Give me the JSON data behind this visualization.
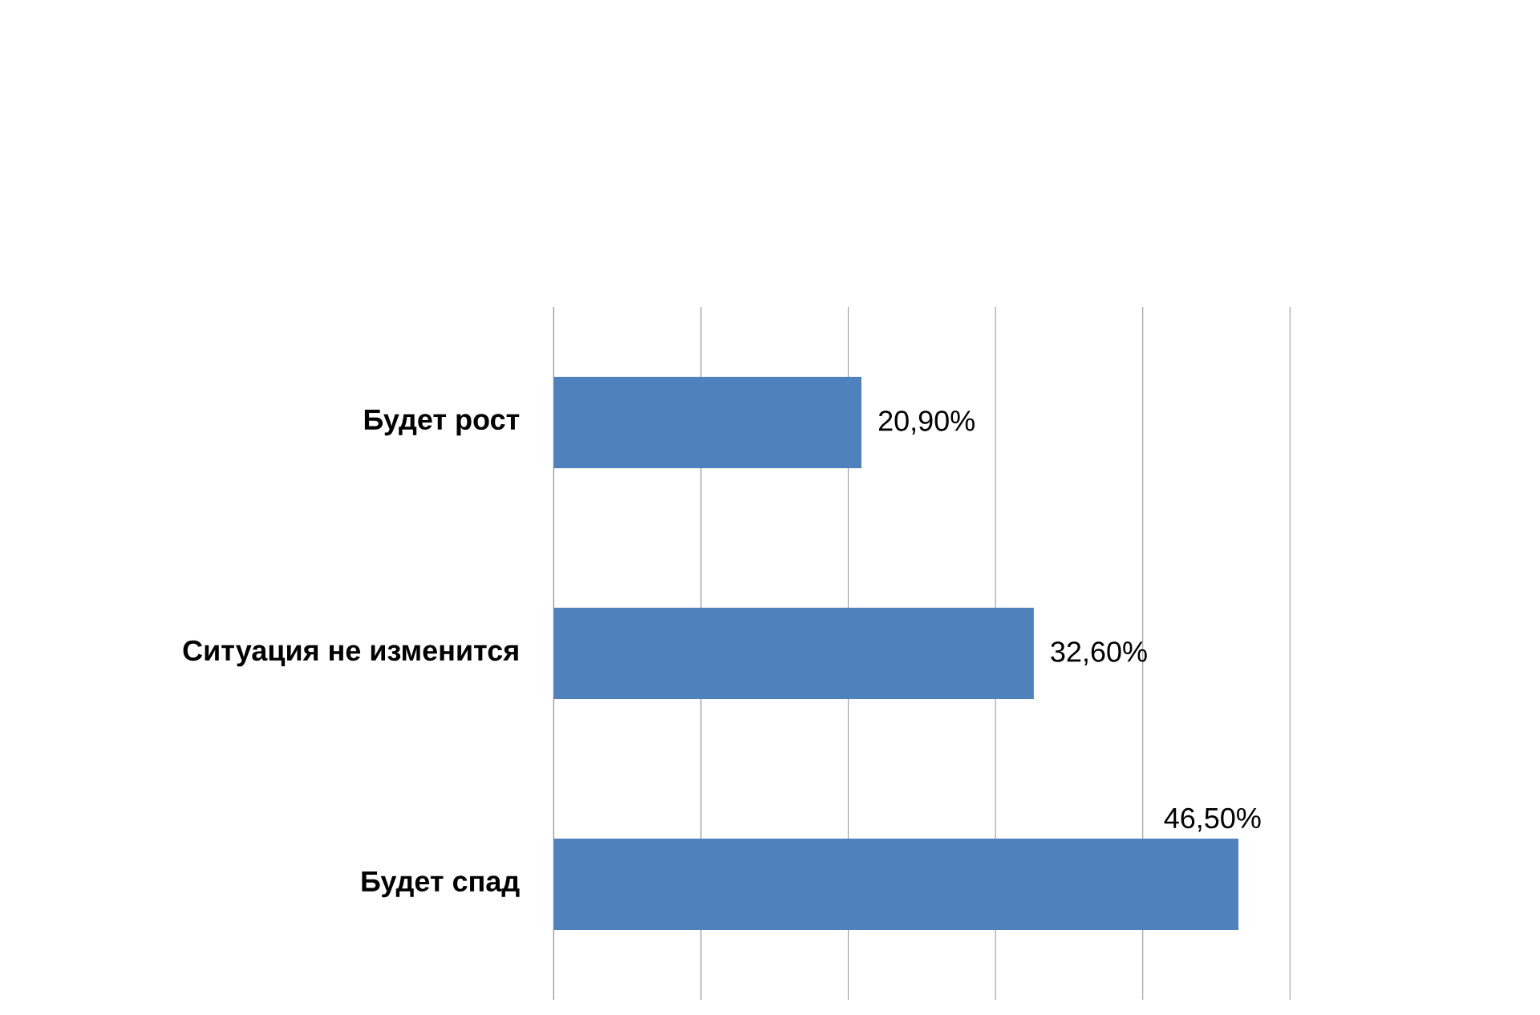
{
  "chart_data": {
    "type": "bar",
    "orientation": "horizontal",
    "categories": [
      "Будет рост",
      "Ситуация не изменится",
      "Будет спад"
    ],
    "values": [
      20.9,
      32.6,
      46.5
    ],
    "value_labels": [
      "20,90%",
      "32,60%",
      "46,50%"
    ],
    "color": "#4f81bd",
    "xlim": [
      0,
      50
    ],
    "xticks": [
      {
        "value": 0,
        "label": null
      },
      {
        "value": 10,
        "label": null
      },
      {
        "value": 20,
        "label": null
      },
      {
        "value": 30,
        "label": null
      },
      {
        "value": 40,
        "label": null
      },
      {
        "value": 50,
        "label": null
      }
    ],
    "grid": "x",
    "tick_labels": "y"
  }
}
